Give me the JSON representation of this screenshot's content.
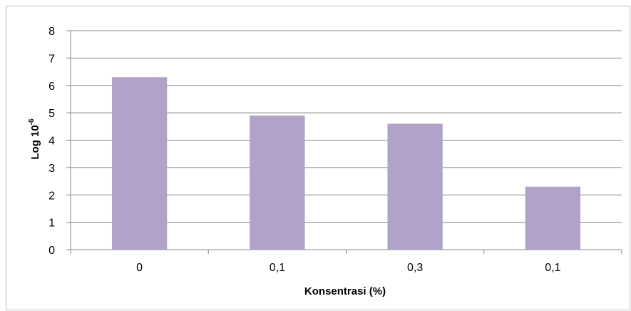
{
  "chart_data": {
    "type": "bar",
    "categories": [
      "0",
      "0,1",
      "0,3",
      "0,1"
    ],
    "values": [
      6.3,
      4.9,
      4.6,
      2.3
    ],
    "xlabel": "Konsentrasi (%)",
    "ylabel_base": "Log 10",
    "ylabel_exponent": "-6",
    "ylim": [
      0,
      8
    ],
    "yticks": [
      "0",
      "1",
      "2",
      "3",
      "4",
      "5",
      "6",
      "7",
      "8"
    ],
    "grid": true,
    "legend": "none",
    "bar_color": "#b0a2c9",
    "grid_color": "#888888"
  }
}
